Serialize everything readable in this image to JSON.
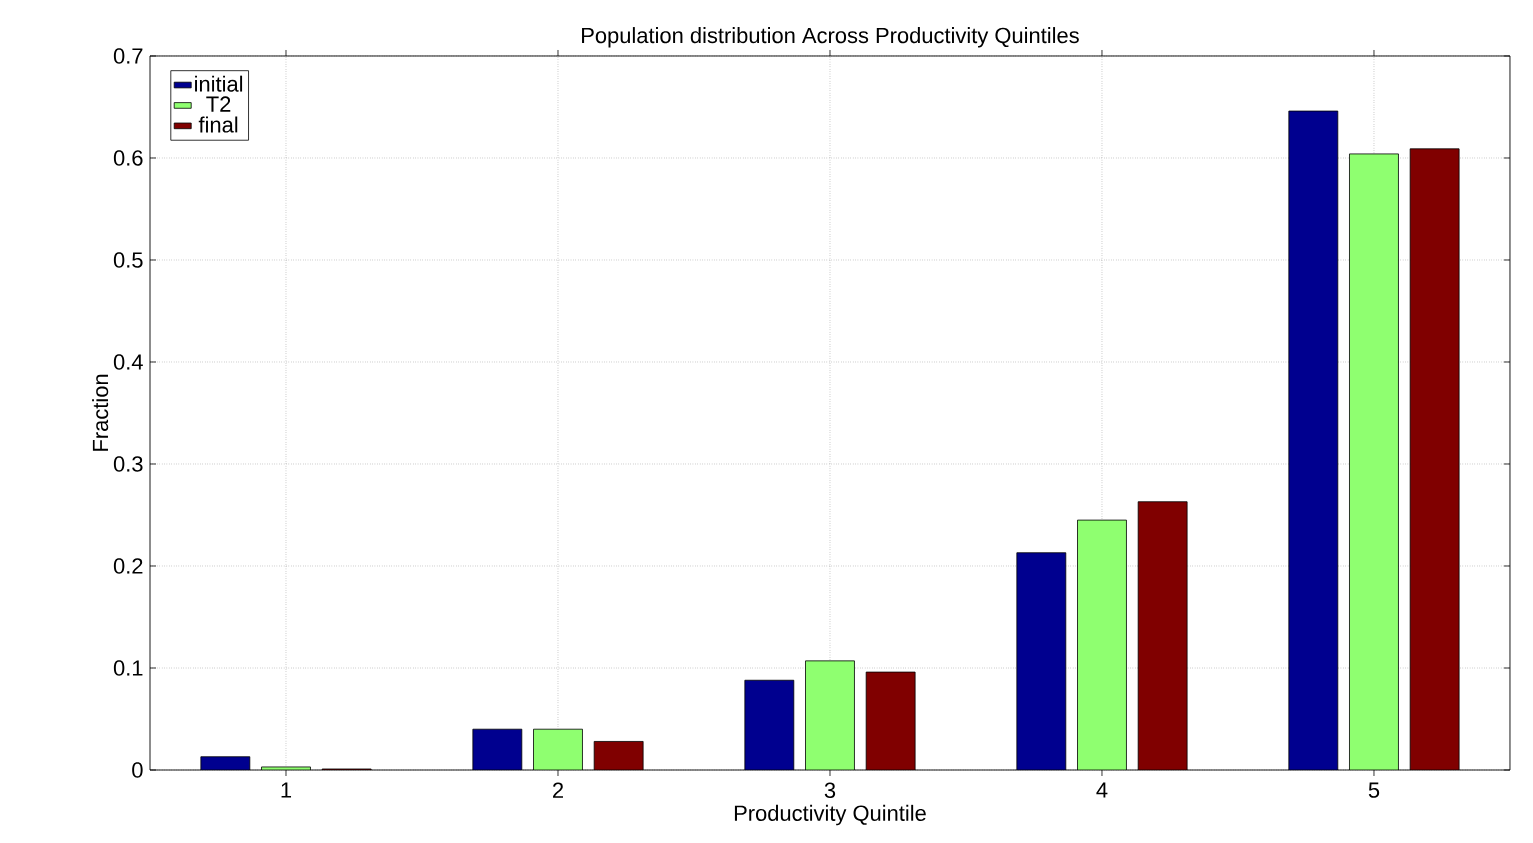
{
  "chart_data": {
    "type": "bar",
    "title": "Population distribution Across Productivity Quintiles",
    "xlabel": "Productivity Quintile",
    "ylabel": "Fraction",
    "categories": [
      "1",
      "2",
      "3",
      "4",
      "5"
    ],
    "series": [
      {
        "name": "initial",
        "color": "#00008f",
        "values": [
          0.013,
          0.04,
          0.088,
          0.213,
          0.646
        ]
      },
      {
        "name": "T2",
        "color": "#8fff70",
        "values": [
          0.003,
          0.04,
          0.107,
          0.245,
          0.604
        ]
      },
      {
        "name": "final",
        "color": "#800000",
        "values": [
          0.001,
          0.028,
          0.096,
          0.263,
          0.609
        ]
      }
    ],
    "ylim": [
      0,
      0.7
    ],
    "yticks": [
      0,
      0.1,
      0.2,
      0.3,
      0.4,
      0.5,
      0.6,
      0.7
    ],
    "grid": true,
    "legend": "top left"
  }
}
